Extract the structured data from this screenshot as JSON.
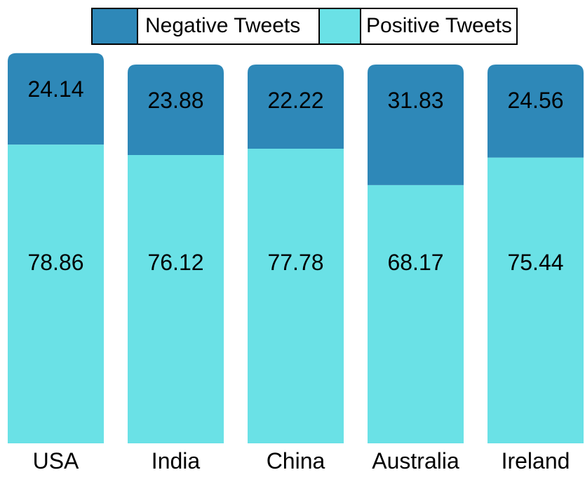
{
  "chart_data": {
    "type": "bar",
    "stacked": true,
    "categories": [
      "USA",
      "India",
      "China",
      "Australia",
      "Ireland"
    ],
    "series": [
      {
        "name": "Negative Tweets",
        "values": [
          24.14,
          23.88,
          22.22,
          31.83,
          24.56
        ],
        "color": "#2e88b8"
      },
      {
        "name": "Positive Tweets",
        "values": [
          78.86,
          76.12,
          77.78,
          68.17,
          75.44
        ],
        "color": "#6ae1e6"
      }
    ],
    "title": "",
    "xlabel": "",
    "ylabel": "",
    "legend": "top-center",
    "grid": false
  }
}
